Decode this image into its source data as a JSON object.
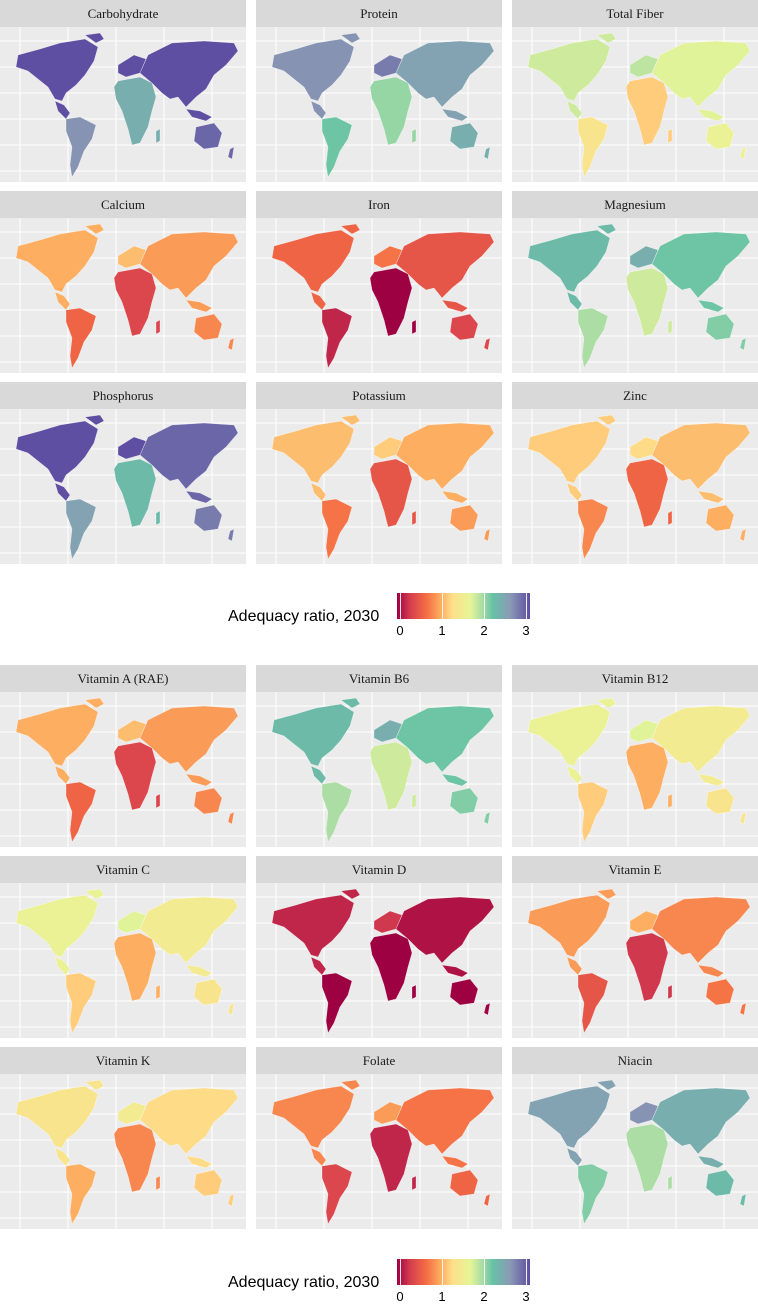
{
  "colors": {
    "scale": [
      "#9e0142",
      "#d53e4f",
      "#f46d43",
      "#fdae61",
      "#fee08b",
      "#e6f598",
      "#abdda4",
      "#66c2a5",
      "#8a9ab5",
      "#5e4fa2"
    ],
    "panel_bg": "#ebebeb",
    "strip_bg": "#d9d9d9"
  },
  "legend": {
    "title": "Adequacy ratio, 2030",
    "ticks": [
      "0",
      "1",
      "2",
      "3"
    ],
    "range": [
      0,
      3
    ]
  },
  "panels": [
    {
      "title": "Carbohydrate",
      "level": 3.0
    },
    {
      "title": "Protein",
      "level": 2.6
    },
    {
      "title": "Total Fiber",
      "level": 1.7
    },
    {
      "title": "Calcium",
      "level": 0.9
    },
    {
      "title": "Iron",
      "level": 0.5
    },
    {
      "title": "Magnesium",
      "level": 2.3
    },
    {
      "title": "Phosphorus",
      "level": 2.9
    },
    {
      "title": "Potassium",
      "level": 1.0
    },
    {
      "title": "Zinc",
      "level": 1.1
    },
    {
      "title": "Vitamin A (RAE)",
      "level": 0.9
    },
    {
      "title": "Vitamin B6",
      "level": 2.3
    },
    {
      "title": "Vitamin B12",
      "level": 1.5
    },
    {
      "title": "Vitamin C",
      "level": 1.5
    },
    {
      "title": "Vitamin D",
      "level": 0.1
    },
    {
      "title": "Vitamin E",
      "level": 0.8
    },
    {
      "title": "Vitamin K",
      "level": 1.3
    },
    {
      "title": "Folate",
      "level": 0.7
    },
    {
      "title": "Niacin",
      "level": 2.5
    }
  ]
}
